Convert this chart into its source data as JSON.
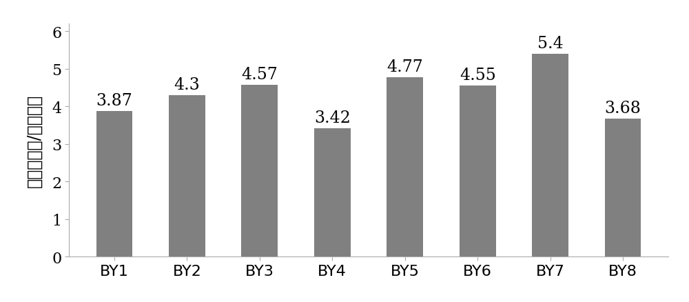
{
  "categories": [
    "BY1",
    "BY2",
    "BY3",
    "BY4",
    "BY5",
    "BY6",
    "BY7",
    "BY8"
  ],
  "values": [
    3.87,
    4.3,
    4.57,
    3.42,
    4.77,
    4.55,
    5.4,
    3.68
  ],
  "bar_color": "#808080",
  "bar_edge_color": "none",
  "ylabel": "透明圈直径/菌落直径",
  "ylim": [
    0,
    6.2
  ],
  "yticks": [
    0,
    1,
    2,
    3,
    4,
    5,
    6
  ],
  "label_fontsize": 17,
  "tick_fontsize": 16,
  "value_fontsize": 17,
  "bar_width": 0.5,
  "background_color": "#ffffff",
  "spine_color": "#aaaaaa",
  "text_color": "#000000"
}
